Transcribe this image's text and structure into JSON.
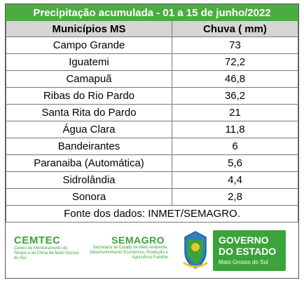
{
  "title": "Precipitação acumulada -  01 a 15 de junho/2022",
  "headers": {
    "municipio": "Municípios MS",
    "chuva": "Chuva ( mm)"
  },
  "rows": [
    {
      "municipio": "Campo Grande",
      "chuva": "73"
    },
    {
      "municipio": "Iguatemi",
      "chuva": "72,2"
    },
    {
      "municipio": "Camapuã",
      "chuva": "46,8"
    },
    {
      "municipio": "Ribas do Rio Pardo",
      "chuva": "36,2"
    },
    {
      "municipio": "Santa Rita do Pardo",
      "chuva": "21"
    },
    {
      "municipio": "Água Clara",
      "chuva": "11,8"
    },
    {
      "municipio": "Bandeirantes",
      "chuva": "6"
    },
    {
      "municipio": "Paranaiba (Automática)",
      "chuva": "5,6"
    },
    {
      "municipio": "Sidrolândia",
      "chuva": "4,4"
    },
    {
      "municipio": "Sonora",
      "chuva": "2,8"
    }
  ],
  "source": "Fonte dos dados: INMET/SEMAGRO.",
  "logos": {
    "cemtec_name": "CEMTEC",
    "cemtec_sub": "Centro de Monitoramento do Tempo e do Clima de Mato Grosso do Sul",
    "semagro_name": "SEMAGRO",
    "semagro_sub": "Secretaria de Estado de Meio Ambiente, Desenvolvimento Econômico, Produção e Agricultura Familiar",
    "gov_line1": "GOVERNO",
    "gov_line2": "DO ESTADO",
    "gov_line3": "Mato Grosso do Sul"
  },
  "colors": {
    "accent": "#4dab43",
    "header_bg": "#d5d5d5"
  }
}
